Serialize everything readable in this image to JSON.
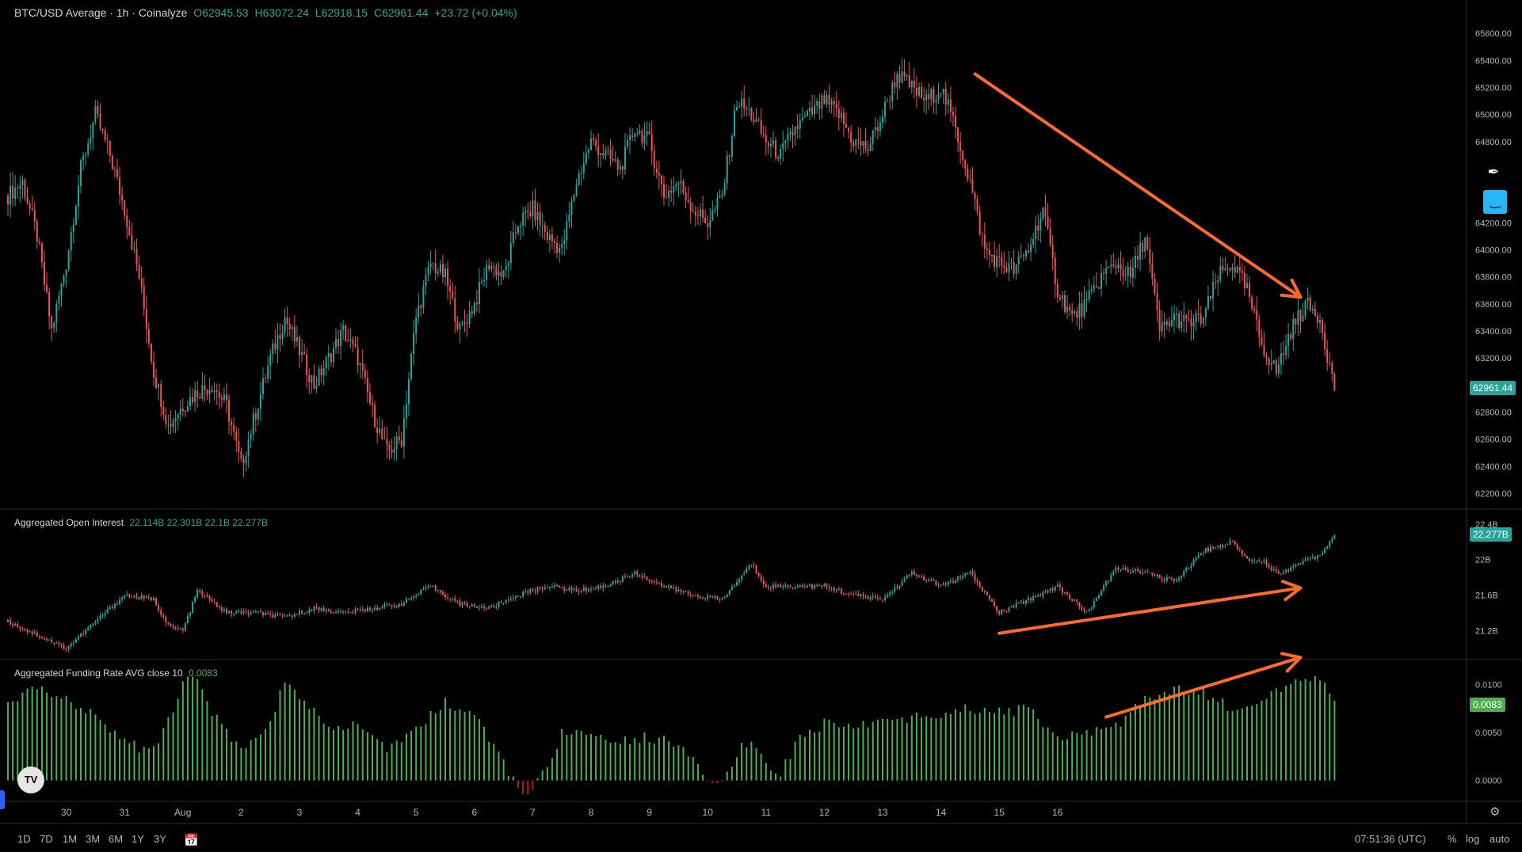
{
  "header": {
    "symbol": "BTC/USD Average · 1h · Coinalyze",
    "o": "O62945.53",
    "h": "H63072.24",
    "l": "L62918.15",
    "c": "C62961.44",
    "change": "+23.72 (+0.04%)"
  },
  "oi_header": {
    "title": "Aggregated Open Interest",
    "values": "22.114B 22.301B 22.1B 22.277B"
  },
  "fr_header": {
    "title": "Aggregated Funding Rate AVG close 10",
    "value": "0.0083"
  },
  "colors": {
    "up": "#26a69a",
    "down": "#ef5350",
    "funding_up": "#4caf50",
    "funding_down": "#b71c1c",
    "arrow": "#ff6a2b",
    "last_price_bg": "#26a69a",
    "oi_tag_bg": "#26a69a",
    "fr_tag_bg": "#4caf50"
  },
  "chart_data": [
    {
      "type": "candlestick",
      "title": "BTC/USD Average · 1h · Coinalyze",
      "ylim": [
        62100,
        65800
      ],
      "y_ticks": [
        62200,
        62400,
        62600,
        62800,
        63200,
        63400,
        63600,
        63800,
        64000,
        64200,
        64800,
        65000,
        65200,
        65400,
        65600
      ],
      "y_tick_labels": [
        "62200.00",
        "62400.00",
        "62600.00",
        "62800.00",
        "63200.00",
        "63400.00",
        "63600.00",
        "63800.00",
        "64000.00",
        "64200.00",
        "64800.00",
        "65000.00",
        "65200.00",
        "65400.00",
        "65600.00"
      ],
      "last_price": "62961.44",
      "price_points": [
        [
          0,
          64400
        ],
        [
          6,
          64500
        ],
        [
          12,
          64100
        ],
        [
          18,
          63400
        ],
        [
          24,
          63900
        ],
        [
          30,
          64600
        ],
        [
          36,
          65000
        ],
        [
          42,
          64700
        ],
        [
          48,
          64300
        ],
        [
          54,
          63800
        ],
        [
          60,
          63100
        ],
        [
          66,
          62700
        ],
        [
          72,
          62850
        ],
        [
          78,
          62950
        ],
        [
          84,
          63000
        ],
        [
          90,
          62850
        ],
        [
          96,
          62400
        ],
        [
          102,
          62800
        ],
        [
          108,
          63200
        ],
        [
          114,
          63500
        ],
        [
          120,
          63250
        ],
        [
          126,
          63000
        ],
        [
          132,
          63200
        ],
        [
          138,
          63400
        ],
        [
          144,
          63200
        ],
        [
          150,
          62800
        ],
        [
          156,
          62500
        ],
        [
          162,
          62600
        ],
        [
          168,
          63500
        ],
        [
          174,
          63900
        ],
        [
          180,
          63800
        ],
        [
          186,
          63400
        ],
        [
          192,
          63600
        ],
        [
          198,
          63900
        ],
        [
          204,
          63800
        ],
        [
          210,
          64200
        ],
        [
          216,
          64300
        ],
        [
          222,
          64100
        ],
        [
          228,
          64000
        ],
        [
          234,
          64500
        ],
        [
          240,
          64800
        ],
        [
          246,
          64700
        ],
        [
          252,
          64600
        ],
        [
          258,
          64900
        ],
        [
          264,
          64800
        ],
        [
          270,
          64400
        ],
        [
          276,
          64500
        ],
        [
          282,
          64300
        ],
        [
          288,
          64200
        ],
        [
          294,
          64400
        ],
        [
          300,
          65100
        ],
        [
          306,
          65000
        ],
        [
          312,
          64800
        ],
        [
          318,
          64700
        ],
        [
          324,
          64900
        ],
        [
          330,
          65000
        ],
        [
          336,
          65100
        ],
        [
          342,
          65000
        ],
        [
          348,
          64800
        ],
        [
          354,
          64750
        ],
        [
          360,
          65000
        ],
        [
          366,
          65300
        ],
        [
          372,
          65200
        ],
        [
          378,
          65100
        ],
        [
          384,
          65200
        ],
        [
          390,
          64900
        ],
        [
          396,
          64500
        ],
        [
          402,
          64000
        ],
        [
          408,
          63900
        ],
        [
          414,
          63850
        ],
        [
          420,
          64000
        ],
        [
          426,
          64300
        ],
        [
          432,
          63700
        ],
        [
          438,
          63500
        ],
        [
          444,
          63600
        ],
        [
          450,
          63800
        ],
        [
          456,
          63900
        ],
        [
          462,
          63800
        ],
        [
          468,
          64100
        ],
        [
          474,
          63400
        ],
        [
          480,
          63500
        ],
        [
          486,
          63450
        ],
        [
          492,
          63500
        ],
        [
          498,
          63800
        ],
        [
          504,
          63900
        ],
        [
          510,
          63700
        ],
        [
          516,
          63300
        ],
        [
          522,
          63100
        ],
        [
          528,
          63400
        ],
        [
          534,
          63600
        ],
        [
          540,
          63500
        ],
        [
          546,
          62961
        ]
      ],
      "x_label_points": [
        24,
        48,
        72,
        96,
        120,
        144,
        168,
        192,
        216,
        240,
        264,
        288,
        312,
        336,
        360,
        384,
        408,
        432,
        456,
        480,
        504,
        528,
        552,
        576
      ],
      "x_labels": [
        "30",
        "31",
        "Aug",
        "2",
        "3",
        "4",
        "5",
        "6",
        "7",
        "8",
        "9",
        "10",
        "11",
        "12",
        "13",
        "14",
        "15",
        "16",
        "",
        "",
        "",
        "",
        "",
        ""
      ]
    },
    {
      "type": "candlestick",
      "title": "Aggregated Open Interest",
      "ylim": [
        20.9,
        22.55
      ],
      "y_ticks": [
        21.2,
        21.6,
        22.0,
        22.4
      ],
      "y_tick_labels": [
        "21.2B",
        "21.6B",
        "22B",
        "22.4B"
      ],
      "last_value": "22.277B",
      "oi_points": [
        [
          0,
          21.3
        ],
        [
          12,
          21.15
        ],
        [
          24,
          21.0
        ],
        [
          36,
          21.3
        ],
        [
          48,
          21.6
        ],
        [
          60,
          21.55
        ],
        [
          66,
          21.25
        ],
        [
          72,
          21.2
        ],
        [
          78,
          21.65
        ],
        [
          90,
          21.4
        ],
        [
          102,
          21.4
        ],
        [
          114,
          21.35
        ],
        [
          126,
          21.45
        ],
        [
          138,
          21.4
        ],
        [
          150,
          21.45
        ],
        [
          162,
          21.5
        ],
        [
          174,
          21.7
        ],
        [
          186,
          21.5
        ],
        [
          198,
          21.45
        ],
        [
          210,
          21.6
        ],
        [
          222,
          21.7
        ],
        [
          234,
          21.65
        ],
        [
          246,
          21.7
        ],
        [
          258,
          21.85
        ],
        [
          270,
          21.7
        ],
        [
          282,
          21.6
        ],
        [
          294,
          21.55
        ],
        [
          306,
          21.95
        ],
        [
          312,
          21.7
        ],
        [
          324,
          21.7
        ],
        [
          336,
          21.7
        ],
        [
          348,
          21.6
        ],
        [
          360,
          21.55
        ],
        [
          372,
          21.85
        ],
        [
          384,
          21.7
        ],
        [
          396,
          21.85
        ],
        [
          408,
          21.4
        ],
        [
          420,
          21.55
        ],
        [
          432,
          21.7
        ],
        [
          444,
          21.4
        ],
        [
          456,
          21.9
        ],
        [
          468,
          21.85
        ],
        [
          480,
          21.75
        ],
        [
          492,
          22.1
        ],
        [
          504,
          22.2
        ],
        [
          510,
          22.0
        ],
        [
          516,
          22.0
        ],
        [
          522,
          21.85
        ],
        [
          528,
          21.9
        ],
        [
          534,
          22.0
        ],
        [
          540,
          22.05
        ],
        [
          546,
          22.277
        ]
      ]
    },
    {
      "type": "bar",
      "title": "Aggregated Funding Rate AVG close 10",
      "ylim": [
        -0.002,
        0.012
      ],
      "y_ticks": [
        0.0,
        0.005,
        0.01
      ],
      "y_tick_labels": [
        "0.0000",
        "0.0050",
        "0.0100"
      ],
      "last_value": "0.0083",
      "fr_points": [
        [
          0,
          0.008
        ],
        [
          12,
          0.0095
        ],
        [
          24,
          0.0085
        ],
        [
          36,
          0.007
        ],
        [
          48,
          0.004
        ],
        [
          60,
          0.003
        ],
        [
          66,
          0.006
        ],
        [
          72,
          0.0105
        ],
        [
          78,
          0.011
        ],
        [
          84,
          0.007
        ],
        [
          96,
          0.003
        ],
        [
          108,
          0.006
        ],
        [
          114,
          0.0105
        ],
        [
          120,
          0.009
        ],
        [
          132,
          0.005
        ],
        [
          144,
          0.006
        ],
        [
          156,
          0.003
        ],
        [
          168,
          0.0055
        ],
        [
          180,
          0.008
        ],
        [
          192,
          0.007
        ],
        [
          198,
          0.004
        ],
        [
          204,
          0.002
        ],
        [
          210,
          -0.0012
        ],
        [
          216,
          -0.001
        ],
        [
          222,
          0.0015
        ],
        [
          228,
          0.005
        ],
        [
          240,
          0.0045
        ],
        [
          252,
          0.004
        ],
        [
          264,
          0.0045
        ],
        [
          276,
          0.004
        ],
        [
          282,
          0.0025
        ],
        [
          288,
          0.0005
        ],
        [
          294,
          -0.0005
        ],
        [
          300,
          0.003
        ],
        [
          306,
          0.004
        ],
        [
          312,
          0.002
        ],
        [
          318,
          0.0005
        ],
        [
          324,
          0.004
        ],
        [
          336,
          0.006
        ],
        [
          348,
          0.0055
        ],
        [
          360,
          0.0065
        ],
        [
          372,
          0.0065
        ],
        [
          384,
          0.007
        ],
        [
          396,
          0.0075
        ],
        [
          408,
          0.007
        ],
        [
          420,
          0.0075
        ],
        [
          432,
          0.0045
        ],
        [
          444,
          0.005
        ],
        [
          456,
          0.0055
        ],
        [
          468,
          0.0085
        ],
        [
          480,
          0.0095
        ],
        [
          492,
          0.009
        ],
        [
          504,
          0.0075
        ],
        [
          516,
          0.0085
        ],
        [
          528,
          0.01
        ],
        [
          540,
          0.0105
        ],
        [
          546,
          0.0083
        ]
      ]
    }
  ],
  "annotations": [
    {
      "panel": 0,
      "from": [
        398,
        65300
      ],
      "to": [
        532,
        63650
      ]
    },
    {
      "panel": 1,
      "from": [
        408,
        21.17
      ],
      "to": [
        532,
        21.68
      ]
    },
    {
      "panel": 2,
      "from": [
        452,
        0.0066
      ],
      "to": [
        532,
        0.0128
      ]
    }
  ],
  "time_axis": {
    "ranges": [
      "1D",
      "7D",
      "1M",
      "3M",
      "6M",
      "1Y",
      "3Y"
    ],
    "clock": "07:51:36 (UTC)",
    "pct_label": "%",
    "log_label": "log",
    "auto_label": "auto"
  }
}
